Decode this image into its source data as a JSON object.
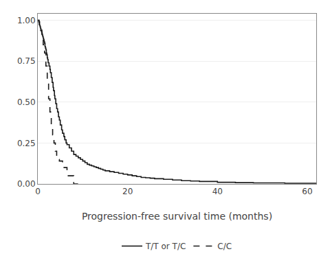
{
  "chart_data": {
    "type": "step",
    "xlabel": "Progression-free survival time (months)",
    "xlim": [
      0,
      62
    ],
    "xticks": [
      0,
      20,
      40,
      60
    ],
    "ylim": [
      0.0,
      1.04
    ],
    "yticks": [
      {
        "value": 0.0,
        "label": "0.00"
      },
      {
        "value": 0.25,
        "label": "0.25"
      },
      {
        "value": 0.5,
        "label": "0.50"
      },
      {
        "value": 0.75,
        "label": "0.75"
      },
      {
        "value": 1.0,
        "label": "1.00"
      }
    ],
    "grid": true,
    "legend": "bottom",
    "series": [
      {
        "name": "T/T or T/C",
        "color": "#1a1a1a",
        "line_style": "solid",
        "x": [
          0,
          0.2,
          0.4,
          0.5,
          0.6,
          0.7,
          0.8,
          0.9,
          1.0,
          1.1,
          1.2,
          1.3,
          1.4,
          1.5,
          1.6,
          1.7,
          1.8,
          1.9,
          2.0,
          2.1,
          2.2,
          2.3,
          2.5,
          2.7,
          2.8,
          3.0,
          3.2,
          3.4,
          3.5,
          3.7,
          3.8,
          4.0,
          4.2,
          4.4,
          4.6,
          4.8,
          5.0,
          5.3,
          5.5,
          5.8,
          6.0,
          6.3,
          6.5,
          7.0,
          7.5,
          8.0,
          8.5,
          9.0,
          9.5,
          10.0,
          10.5,
          11.0,
          11.5,
          12.0,
          12.5,
          13.0,
          13.5,
          14.0,
          14.5,
          15.0,
          16.0,
          17.0,
          18.0,
          19.0,
          20.0,
          21.0,
          22.0,
          23.0,
          24.0,
          25.0,
          26.0,
          28.0,
          30.0,
          32.0,
          34.0,
          36.0,
          40.0,
          44.0,
          48.0,
          55.0,
          62.0
        ],
        "values": [
          1.0,
          0.99,
          0.97,
          0.96,
          0.95,
          0.94,
          0.93,
          0.92,
          0.91,
          0.9,
          0.89,
          0.88,
          0.87,
          0.86,
          0.84,
          0.83,
          0.82,
          0.8,
          0.79,
          0.77,
          0.76,
          0.74,
          0.72,
          0.7,
          0.68,
          0.65,
          0.62,
          0.59,
          0.57,
          0.54,
          0.52,
          0.49,
          0.46,
          0.44,
          0.41,
          0.39,
          0.36,
          0.33,
          0.31,
          0.29,
          0.27,
          0.25,
          0.24,
          0.22,
          0.2,
          0.18,
          0.17,
          0.16,
          0.15,
          0.14,
          0.13,
          0.12,
          0.115,
          0.11,
          0.105,
          0.1,
          0.095,
          0.09,
          0.085,
          0.08,
          0.075,
          0.07,
          0.065,
          0.06,
          0.055,
          0.05,
          0.045,
          0.04,
          0.038,
          0.035,
          0.032,
          0.028,
          0.024,
          0.02,
          0.018,
          0.015,
          0.01,
          0.008,
          0.006,
          0.004,
          0.004
        ]
      },
      {
        "name": "C/C",
        "color": "#1a1a1a",
        "line_style": "dashed",
        "x": [
          0,
          0.3,
          0.6,
          0.9,
          1.2,
          1.5,
          1.8,
          2.1,
          2.4,
          2.7,
          3.0,
          3.3,
          3.6,
          3.9,
          4.2,
          4.8,
          5.5,
          6.0,
          6.5,
          7.2,
          8.0,
          9.5
        ],
        "values": [
          1.0,
          0.97,
          0.94,
          0.9,
          0.85,
          0.8,
          0.72,
          0.62,
          0.52,
          0.44,
          0.36,
          0.3,
          0.25,
          0.2,
          0.15,
          0.14,
          0.1,
          0.1,
          0.05,
          0.05,
          0.0,
          0.0
        ]
      }
    ]
  }
}
